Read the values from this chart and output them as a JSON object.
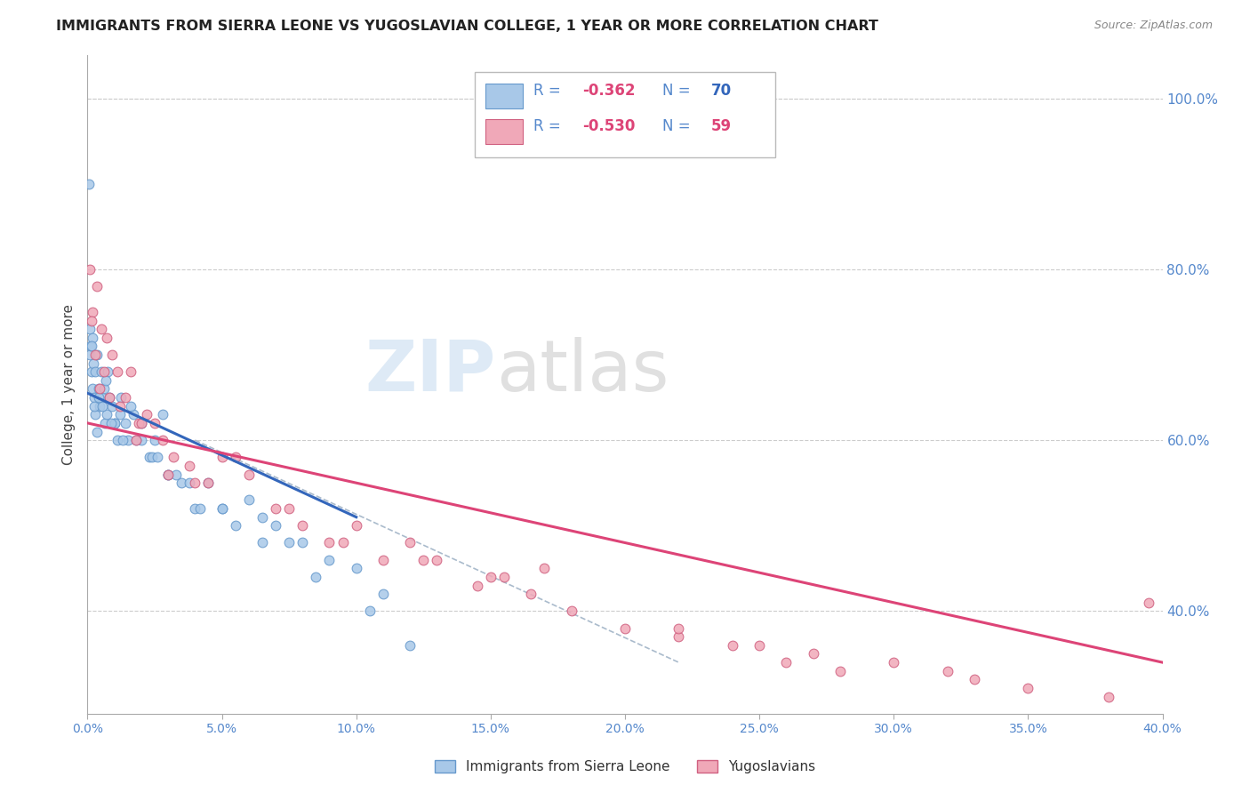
{
  "title": "IMMIGRANTS FROM SIERRA LEONE VS YUGOSLAVIAN COLLEGE, 1 YEAR OR MORE CORRELATION CHART",
  "source": "Source: ZipAtlas.com",
  "ylabel": "College, 1 year or more",
  "series1_label": "Immigrants from Sierra Leone",
  "series2_label": "Yugoslavians",
  "legend_r1": "R = -0.362",
  "legend_n1": "N = 70",
  "legend_r2": "R = -0.530",
  "legend_n2": "N = 59",
  "series1_fill": "#a8c8e8",
  "series1_edge": "#6699cc",
  "series2_fill": "#f0a8b8",
  "series2_edge": "#d06080",
  "line1_color": "#3366bb",
  "line2_color": "#dd4477",
  "dash_color": "#aabbcc",
  "grid_color": "#cccccc",
  "bg_color": "#ffffff",
  "right_tick_color": "#5588cc",
  "xmin": 0.0,
  "xmax": 40.0,
  "ymin": 28.0,
  "ymax": 105.0,
  "xtick_vals": [
    0,
    5,
    10,
    15,
    20,
    25,
    30,
    35,
    40
  ],
  "ytick_right_vals": [
    40,
    60,
    80,
    100
  ],
  "blue_x": [
    0.05,
    0.08,
    0.1,
    0.12,
    0.15,
    0.18,
    0.2,
    0.22,
    0.25,
    0.28,
    0.3,
    0.35,
    0.4,
    0.45,
    0.5,
    0.55,
    0.6,
    0.65,
    0.7,
    0.8,
    0.9,
    1.0,
    1.1,
    1.2,
    1.4,
    1.5,
    1.7,
    2.0,
    2.3,
    2.5,
    2.8,
    3.0,
    3.5,
    4.0,
    4.5,
    5.0,
    5.5,
    6.0,
    6.5,
    7.0,
    8.0,
    9.0,
    10.0,
    0.25,
    0.35,
    0.55,
    0.75,
    1.0,
    1.3,
    1.6,
    2.0,
    2.4,
    3.0,
    3.8,
    5.0,
    6.5,
    8.5,
    10.5,
    12.0,
    0.15,
    0.42,
    0.68,
    0.88,
    1.25,
    1.8,
    2.6,
    3.3,
    4.2,
    7.5,
    11.0
  ],
  "blue_y": [
    90.0,
    73.0,
    70.0,
    71.0,
    68.0,
    72.0,
    66.0,
    69.0,
    65.0,
    63.0,
    68.0,
    70.0,
    66.0,
    64.0,
    68.0,
    65.0,
    66.0,
    62.0,
    63.0,
    65.0,
    64.0,
    62.0,
    60.0,
    63.0,
    62.0,
    60.0,
    63.0,
    62.0,
    58.0,
    60.0,
    63.0,
    56.0,
    55.0,
    52.0,
    55.0,
    52.0,
    50.0,
    53.0,
    51.0,
    50.0,
    48.0,
    46.0,
    45.0,
    64.0,
    61.0,
    64.0,
    68.0,
    62.0,
    60.0,
    64.0,
    60.0,
    58.0,
    56.0,
    55.0,
    52.0,
    48.0,
    44.0,
    40.0,
    36.0,
    71.0,
    65.0,
    67.0,
    62.0,
    65.0,
    60.0,
    58.0,
    56.0,
    52.0,
    48.0,
    42.0
  ],
  "pink_x": [
    0.1,
    0.2,
    0.35,
    0.5,
    0.7,
    0.9,
    1.1,
    1.4,
    1.6,
    1.9,
    2.2,
    2.5,
    2.8,
    3.2,
    3.8,
    4.5,
    5.0,
    6.0,
    7.0,
    8.0,
    9.5,
    10.0,
    11.0,
    12.0,
    13.0,
    14.5,
    15.5,
    16.5,
    18.0,
    20.0,
    22.0,
    24.0,
    26.0,
    28.0,
    30.0,
    35.0,
    38.0,
    0.3,
    0.6,
    0.8,
    1.2,
    1.8,
    3.0,
    5.5,
    7.5,
    12.5,
    17.0,
    25.0,
    32.0,
    39.5,
    0.15,
    0.45,
    2.0,
    4.0,
    9.0,
    15.0,
    22.0,
    27.0,
    33.0
  ],
  "pink_y": [
    80.0,
    75.0,
    78.0,
    73.0,
    72.0,
    70.0,
    68.0,
    65.0,
    68.0,
    62.0,
    63.0,
    62.0,
    60.0,
    58.0,
    57.0,
    55.0,
    58.0,
    56.0,
    52.0,
    50.0,
    48.0,
    50.0,
    46.0,
    48.0,
    46.0,
    43.0,
    44.0,
    42.0,
    40.0,
    38.0,
    37.0,
    36.0,
    34.0,
    33.0,
    34.0,
    31.0,
    30.0,
    70.0,
    68.0,
    65.0,
    64.0,
    60.0,
    56.0,
    58.0,
    52.0,
    46.0,
    45.0,
    36.0,
    33.0,
    41.0,
    74.0,
    66.0,
    62.0,
    55.0,
    48.0,
    44.0,
    38.0,
    35.0,
    32.0
  ],
  "blue_line_x0": 0.0,
  "blue_line_x1": 10.0,
  "blue_line_y0": 65.5,
  "blue_line_y1": 51.0,
  "pink_line_x0": 0.0,
  "pink_line_x1": 40.0,
  "pink_line_y0": 62.0,
  "pink_line_y1": 34.0,
  "dash_line_x0": 4.0,
  "dash_line_x1": 22.0,
  "dash_line_y0": 60.0,
  "dash_line_y1": 34.0
}
